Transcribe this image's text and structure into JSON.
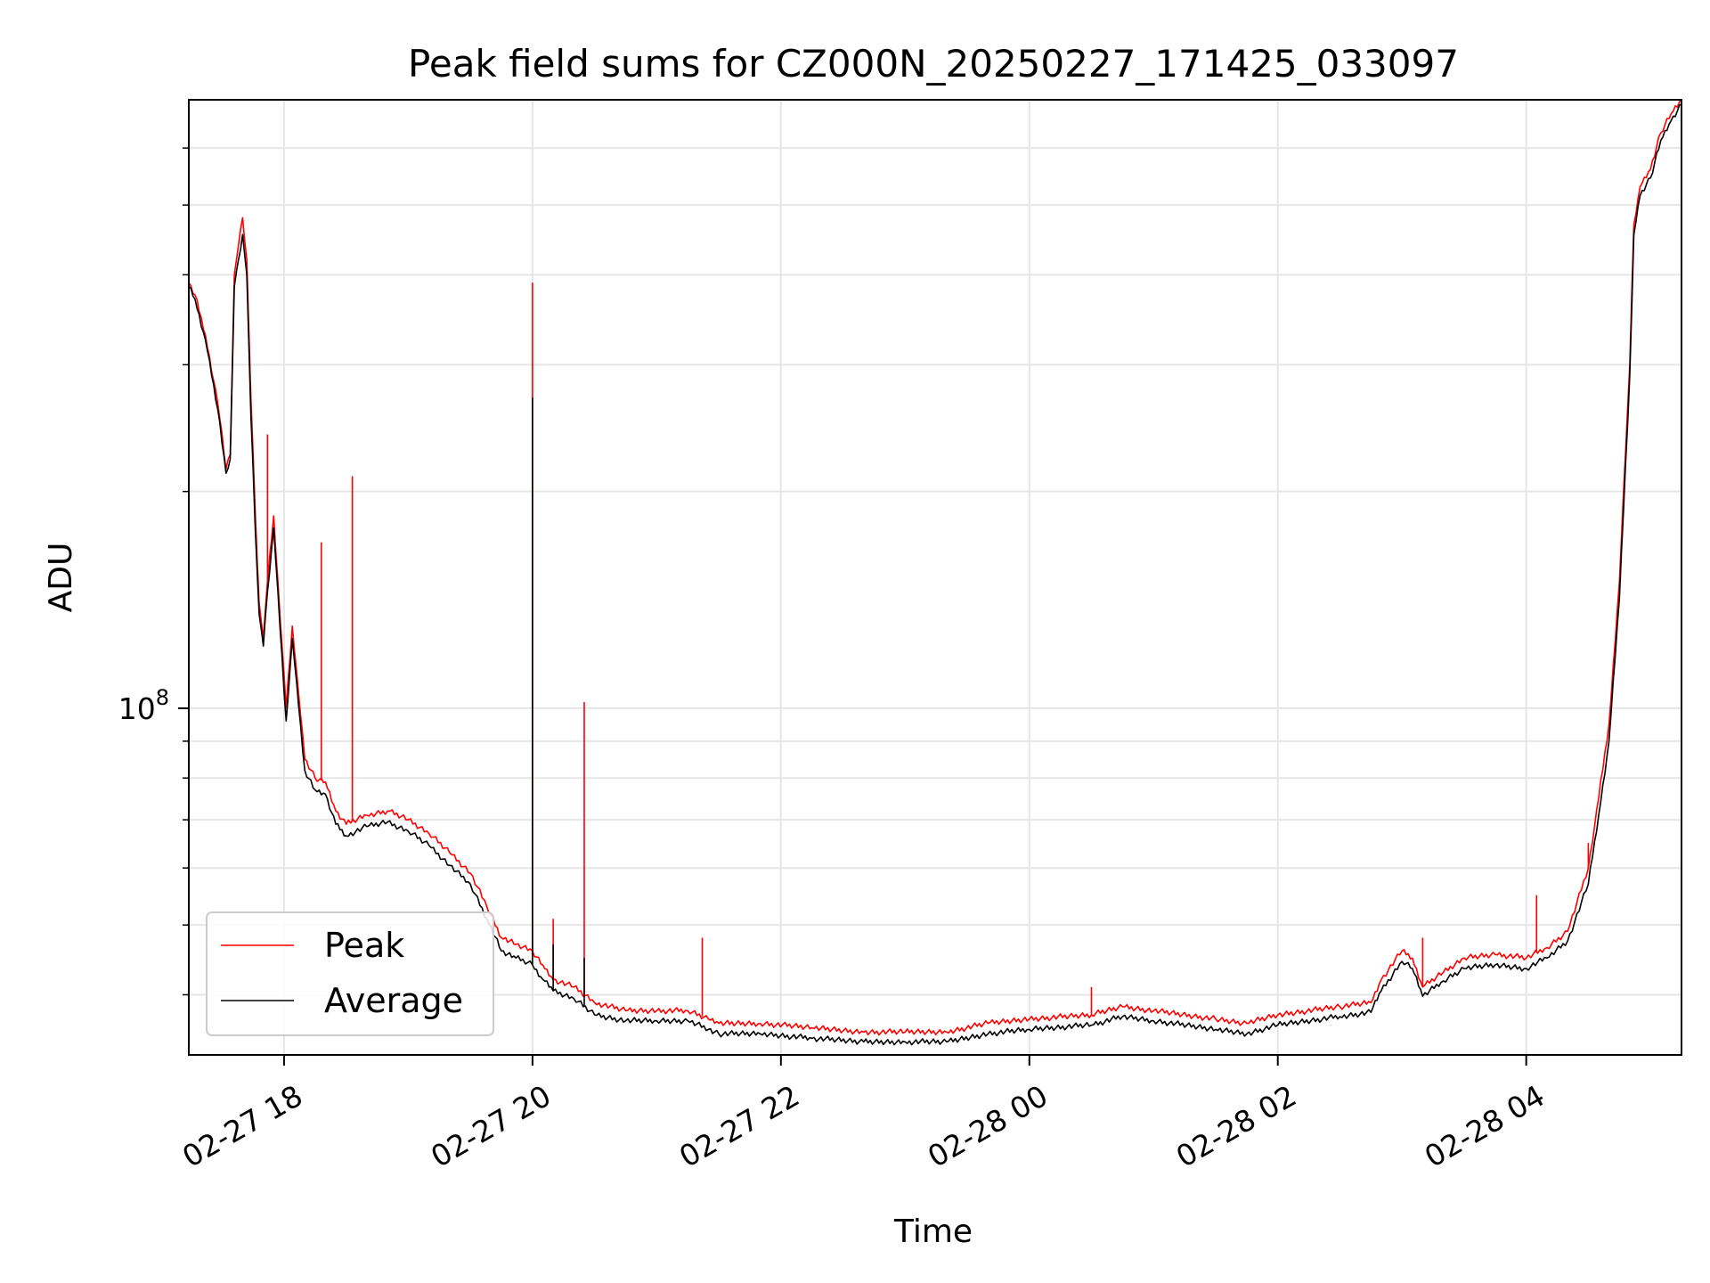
{
  "chart_data": {
    "type": "line",
    "title": "Peak field sums for CZ000N_20250227_171425_033097",
    "xlabel": "Time",
    "ylabel": "ADU",
    "y_scale": "log",
    "grid": true,
    "legend_placement": "lower-left",
    "x_ticks": [
      "02-27 18",
      "02-27 20",
      "02-27 22",
      "02-28 00",
      "02-28 02",
      "02-28 04"
    ],
    "y_ticks": [
      {
        "value": 100000000,
        "label": "10",
        "exponent": "8"
      }
    ],
    "xlim": [
      "2025-02-27 17:14",
      "2025-02-28 05:15"
    ],
    "ylim": [
      33000000,
      700000000
    ],
    "series": [
      {
        "name": "Peak",
        "color": "#ff0000",
        "points": [
          [
            "2025-02-27 17:14",
            390000000
          ],
          [
            "2025-02-27 17:17",
            375000000
          ],
          [
            "2025-02-27 17:22",
            330000000
          ],
          [
            "2025-02-27 17:28",
            265000000
          ],
          [
            "2025-02-27 17:32",
            215000000
          ],
          [
            "2025-02-27 17:34",
            225000000
          ],
          [
            "2025-02-27 17:36",
            400000000
          ],
          [
            "2025-02-27 17:38",
            440000000
          ],
          [
            "2025-02-27 17:40",
            480000000
          ],
          [
            "2025-02-27 17:42",
            420000000
          ],
          [
            "2025-02-27 17:44",
            270000000
          ],
          [
            "2025-02-27 17:46",
            190000000
          ],
          [
            "2025-02-27 17:48",
            140000000
          ],
          [
            "2025-02-27 17:50",
            125000000
          ],
          [
            "2025-02-27 17:52",
            150000000
          ],
          [
            "2025-02-27 17:55",
            185000000
          ],
          [
            "2025-02-27 17:58",
            135000000
          ],
          [
            "2025-02-27 18:01",
            100000000
          ],
          [
            "2025-02-27 18:04",
            130000000
          ],
          [
            "2025-02-27 18:07",
            105000000
          ],
          [
            "2025-02-27 18:10",
            85000000
          ],
          [
            "2025-02-27 18:15",
            80000000
          ],
          [
            "2025-02-27 18:20",
            79000000
          ],
          [
            "2025-02-27 18:25",
            72000000
          ],
          [
            "2025-02-27 18:30",
            69000000
          ],
          [
            "2025-02-27 18:40",
            71000000
          ],
          [
            "2025-02-27 18:50",
            72000000
          ],
          [
            "2025-02-27 19:00",
            70000000
          ],
          [
            "2025-02-27 19:10",
            67000000
          ],
          [
            "2025-02-27 19:20",
            63000000
          ],
          [
            "2025-02-27 19:30",
            59000000
          ],
          [
            "2025-02-27 19:38",
            53000000
          ],
          [
            "2025-02-27 19:45",
            48000000
          ],
          [
            "2025-02-27 19:52",
            47000000
          ],
          [
            "2025-02-27 20:00",
            46000000
          ],
          [
            "2025-02-27 20:05",
            44000000
          ],
          [
            "2025-02-27 20:10",
            42000000
          ],
          [
            "2025-02-27 20:20",
            41000000
          ],
          [
            "2025-02-27 20:30",
            39000000
          ],
          [
            "2025-02-27 20:45",
            38000000
          ],
          [
            "2025-02-27 21:00",
            38000000
          ],
          [
            "2025-02-27 21:15",
            38000000
          ],
          [
            "2025-02-27 21:25",
            37000000
          ],
          [
            "2025-02-27 21:30",
            36500000
          ],
          [
            "2025-02-27 21:50",
            36500000
          ],
          [
            "2025-02-27 22:15",
            36000000
          ],
          [
            "2025-02-27 22:40",
            35500000
          ],
          [
            "2025-02-27 23:00",
            35500000
          ],
          [
            "2025-02-27 23:20",
            35500000
          ],
          [
            "2025-02-27 23:40",
            36500000
          ],
          [
            "2025-02-28 00:00",
            37000000
          ],
          [
            "2025-02-28 00:30",
            37500000
          ],
          [
            "2025-02-28 00:45",
            38500000
          ],
          [
            "2025-02-28 01:00",
            38000000
          ],
          [
            "2025-02-28 01:30",
            37000000
          ],
          [
            "2025-02-28 01:45",
            36500000
          ],
          [
            "2025-02-28 02:00",
            37500000
          ],
          [
            "2025-02-28 02:30",
            38500000
          ],
          [
            "2025-02-28 02:45",
            39000000
          ],
          [
            "2025-02-28 02:50",
            42000000
          ],
          [
            "2025-02-28 03:00",
            46000000
          ],
          [
            "2025-02-28 03:05",
            45000000
          ],
          [
            "2025-02-28 03:10",
            41000000
          ],
          [
            "2025-02-28 03:20",
            43000000
          ],
          [
            "2025-02-28 03:30",
            45000000
          ],
          [
            "2025-02-28 03:45",
            45500000
          ],
          [
            "2025-02-28 04:00",
            45000000
          ],
          [
            "2025-02-28 04:10",
            46500000
          ],
          [
            "2025-02-28 04:20",
            49000000
          ],
          [
            "2025-02-28 04:30",
            60000000
          ],
          [
            "2025-02-28 04:35",
            75000000
          ],
          [
            "2025-02-28 04:40",
            95000000
          ],
          [
            "2025-02-28 04:45",
            150000000
          ],
          [
            "2025-02-28 04:50",
            300000000
          ],
          [
            "2025-02-28 04:52",
            470000000
          ],
          [
            "2025-02-28 04:55",
            530000000
          ],
          [
            "2025-02-28 05:00",
            560000000
          ],
          [
            "2025-02-28 05:05",
            630000000
          ],
          [
            "2025-02-28 05:10",
            670000000
          ],
          [
            "2025-02-28 05:15",
            700000000
          ]
        ],
        "spikes": [
          [
            "2025-02-27 17:52",
            240000000
          ],
          [
            "2025-02-27 18:18",
            170000000
          ],
          [
            "2025-02-27 18:33",
            210000000
          ],
          [
            "2025-02-27 20:00",
            390000000
          ],
          [
            "2025-02-27 20:10",
            51000000
          ],
          [
            "2025-02-27 20:25",
            102000000
          ],
          [
            "2025-02-27 21:22",
            48000000
          ],
          [
            "2025-02-28 00:30",
            41000000
          ],
          [
            "2025-02-28 03:10",
            48000000
          ],
          [
            "2025-02-28 04:05",
            55000000
          ],
          [
            "2025-02-28 04:30",
            65000000
          ]
        ]
      },
      {
        "name": "Average",
        "color": "#000000",
        "points": [
          [
            "2025-02-27 17:14",
            385000000
          ],
          [
            "2025-02-27 17:17",
            370000000
          ],
          [
            "2025-02-27 17:22",
            325000000
          ],
          [
            "2025-02-27 17:28",
            260000000
          ],
          [
            "2025-02-27 17:32",
            212000000
          ],
          [
            "2025-02-27 17:34",
            222000000
          ],
          [
            "2025-02-27 17:36",
            385000000
          ],
          [
            "2025-02-27 17:38",
            420000000
          ],
          [
            "2025-02-27 17:40",
            455000000
          ],
          [
            "2025-02-27 17:42",
            400000000
          ],
          [
            "2025-02-27 17:44",
            255000000
          ],
          [
            "2025-02-27 17:46",
            180000000
          ],
          [
            "2025-02-27 17:48",
            135000000
          ],
          [
            "2025-02-27 17:50",
            122000000
          ],
          [
            "2025-02-27 17:52",
            145000000
          ],
          [
            "2025-02-27 17:55",
            178000000
          ],
          [
            "2025-02-27 17:58",
            130000000
          ],
          [
            "2025-02-27 18:01",
            96000000
          ],
          [
            "2025-02-27 18:04",
            125000000
          ],
          [
            "2025-02-27 18:07",
            101000000
          ],
          [
            "2025-02-27 18:10",
            82000000
          ],
          [
            "2025-02-27 18:15",
            77000000
          ],
          [
            "2025-02-27 18:20",
            76000000
          ],
          [
            "2025-02-27 18:25",
            69000000
          ],
          [
            "2025-02-27 18:30",
            66500000
          ],
          [
            "2025-02-27 18:40",
            68500000
          ],
          [
            "2025-02-27 18:50",
            69500000
          ],
          [
            "2025-02-27 19:00",
            67500000
          ],
          [
            "2025-02-27 19:10",
            64500000
          ],
          [
            "2025-02-27 19:20",
            60500000
          ],
          [
            "2025-02-27 19:30",
            57000000
          ],
          [
            "2025-02-27 19:38",
            51000000
          ],
          [
            "2025-02-27 19:45",
            46000000
          ],
          [
            "2025-02-27 19:52",
            45000000
          ],
          [
            "2025-02-27 20:00",
            44000000
          ],
          [
            "2025-02-27 20:05",
            42000000
          ],
          [
            "2025-02-27 20:10",
            40500000
          ],
          [
            "2025-02-27 20:20",
            39500000
          ],
          [
            "2025-02-27 20:30",
            37500000
          ],
          [
            "2025-02-27 20:45",
            36800000
          ],
          [
            "2025-02-27 21:00",
            36800000
          ],
          [
            "2025-02-27 21:15",
            36800000
          ],
          [
            "2025-02-27 21:25",
            35800000
          ],
          [
            "2025-02-27 21:30",
            35300000
          ],
          [
            "2025-02-27 21:50",
            35300000
          ],
          [
            "2025-02-27 22:15",
            34800000
          ],
          [
            "2025-02-27 22:40",
            34400000
          ],
          [
            "2025-02-27 23:00",
            34400000
          ],
          [
            "2025-02-27 23:20",
            34400000
          ],
          [
            "2025-02-27 23:40",
            35300000
          ],
          [
            "2025-02-28 00:00",
            35800000
          ],
          [
            "2025-02-28 00:30",
            36300000
          ],
          [
            "2025-02-28 00:45",
            37300000
          ],
          [
            "2025-02-28 01:00",
            36800000
          ],
          [
            "2025-02-28 01:30",
            35800000
          ],
          [
            "2025-02-28 01:45",
            35300000
          ],
          [
            "2025-02-28 02:00",
            36300000
          ],
          [
            "2025-02-28 02:30",
            37300000
          ],
          [
            "2025-02-28 02:45",
            37800000
          ],
          [
            "2025-02-28 02:50",
            40500000
          ],
          [
            "2025-02-28 03:00",
            44500000
          ],
          [
            "2025-02-28 03:05",
            43500000
          ],
          [
            "2025-02-28 03:10",
            39800000
          ],
          [
            "2025-02-28 03:20",
            41800000
          ],
          [
            "2025-02-28 03:30",
            43500000
          ],
          [
            "2025-02-28 03:45",
            44000000
          ],
          [
            "2025-02-28 04:00",
            43500000
          ],
          [
            "2025-02-28 04:10",
            45000000
          ],
          [
            "2025-02-28 04:20",
            47500000
          ],
          [
            "2025-02-28 04:30",
            57000000
          ],
          [
            "2025-02-28 04:35",
            71000000
          ],
          [
            "2025-02-28 04:40",
            90000000
          ],
          [
            "2025-02-28 04:45",
            142000000
          ],
          [
            "2025-02-28 04:50",
            290000000
          ],
          [
            "2025-02-28 04:52",
            455000000
          ],
          [
            "2025-02-28 04:55",
            515000000
          ],
          [
            "2025-02-28 05:00",
            545000000
          ],
          [
            "2025-02-28 05:05",
            615000000
          ],
          [
            "2025-02-28 05:10",
            655000000
          ],
          [
            "2025-02-28 05:15",
            690000000
          ]
        ],
        "spikes": [
          [
            "2025-02-27 20:00",
            270000000
          ],
          [
            "2025-02-27 20:10",
            47000000
          ],
          [
            "2025-02-27 20:25",
            45000000
          ]
        ]
      }
    ]
  }
}
